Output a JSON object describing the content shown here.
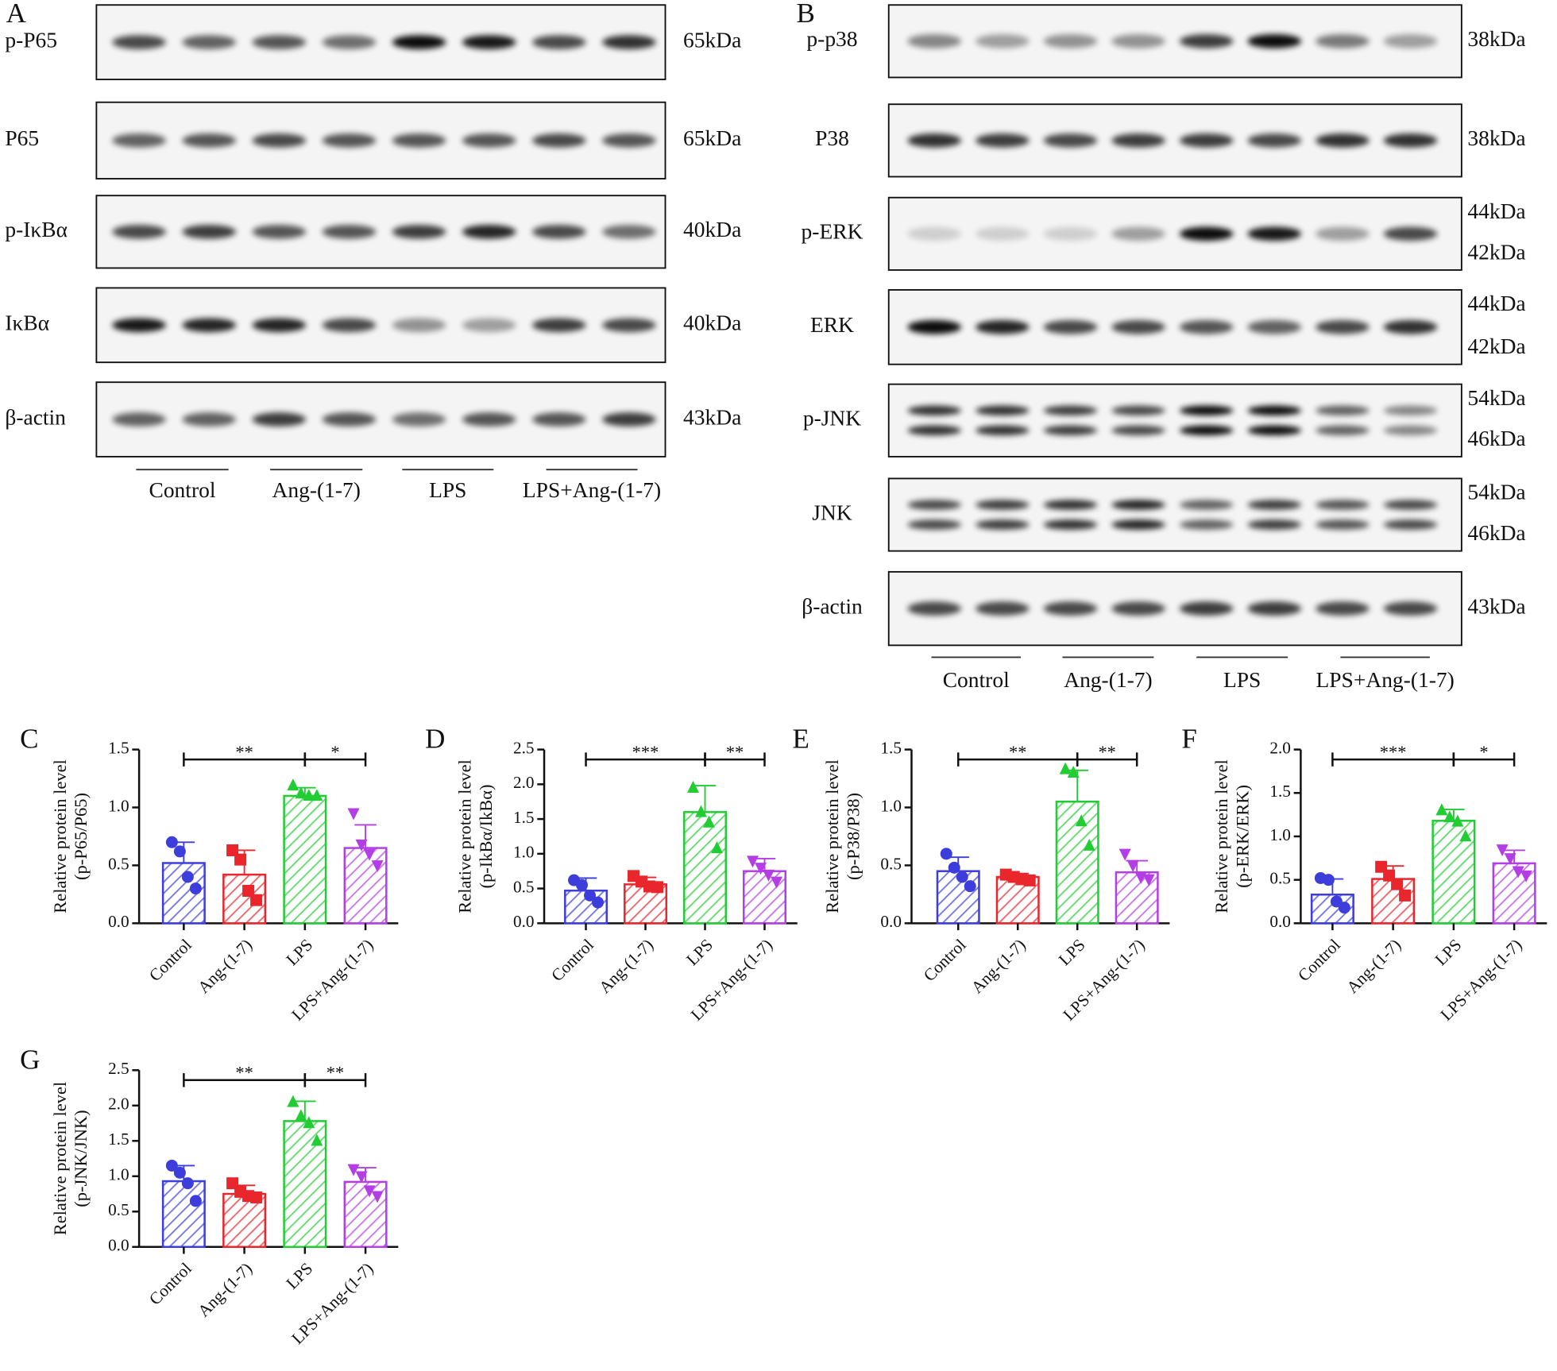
{
  "blots": [
    {
      "letter": "A",
      "rows": [
        {
          "label": "p-P65",
          "sizes": [
            "65kDa"
          ]
        },
        {
          "label": "P65",
          "sizes": [
            "65kDa"
          ]
        },
        {
          "label": "p-IκBα",
          "sizes": [
            "40kDa"
          ]
        },
        {
          "label": "IκBα",
          "sizes": [
            "40kDa"
          ]
        },
        {
          "label": "β-actin",
          "sizes": [
            "43kDa"
          ]
        }
      ],
      "groups": [
        "Control",
        "Ang-(1-7)",
        "LPS",
        "LPS+Ang-(1-7)"
      ]
    },
    {
      "letter": "B",
      "rows": [
        {
          "label": "p-p38",
          "sizes": [
            "38kDa"
          ]
        },
        {
          "label": "P38",
          "sizes": [
            "38kDa"
          ]
        },
        {
          "label": "p-ERK",
          "sizes": [
            "44kDa",
            "42kDa"
          ]
        },
        {
          "label": "ERK",
          "sizes": [
            "44kDa",
            "42kDa"
          ]
        },
        {
          "label": "p-JNK",
          "sizes": [
            "54kDa",
            "46kDa"
          ]
        },
        {
          "label": "JNK",
          "sizes": [
            "54kDa",
            "46kDa"
          ]
        },
        {
          "label": "β-actin",
          "sizes": [
            "43kDa"
          ]
        }
      ],
      "groups": [
        "Control",
        "Ang-(1-7)",
        "LPS",
        "LPS+Ang-(1-7)"
      ]
    }
  ],
  "chart_data": [
    {
      "type": "bar",
      "letter": "C",
      "y_label": [
        "Relative protein level",
        "(p-P65/P65)"
      ],
      "categories": [
        "Control",
        "Ang-(1-7)",
        "LPS",
        "LPS+Ang-(1-7)"
      ],
      "colors": [
        "#3d3ddb",
        "#e8262c",
        "#22cc33",
        "#b43ee6"
      ],
      "markers": [
        "circle",
        "square",
        "triangle",
        "triangle-down"
      ],
      "values": [
        0.52,
        0.42,
        1.1,
        0.65
      ],
      "errors": [
        0.18,
        0.21,
        0.07,
        0.2
      ],
      "points": [
        [
          0.7,
          0.62,
          0.4,
          0.3
        ],
        [
          0.63,
          0.55,
          0.28,
          0.2
        ],
        [
          1.19,
          1.12,
          1.1,
          1.1
        ],
        [
          0.95,
          0.68,
          0.6,
          0.5
        ]
      ],
      "ylim": [
        0,
        1.5
      ],
      "yticks": [
        {
          "value": 0,
          "label": "0.0"
        },
        0.5,
        {
          "value": 1,
          "label": "1.0"
        },
        1.5
      ],
      "significance": [
        {
          "text": "**",
          "between": [
            0,
            2
          ]
        },
        {
          "text": "*",
          "between": [
            2,
            3
          ]
        }
      ]
    },
    {
      "type": "bar",
      "letter": "D",
      "y_label": [
        "Relative protein level",
        "(p-IkBα/IkBα)"
      ],
      "categories": [
        "Control",
        "Ang-(1-7)",
        "LPS",
        "LPS+Ang-(1-7)"
      ],
      "colors": [
        "#3d3ddb",
        "#e8262c",
        "#22cc33",
        "#b43ee6"
      ],
      "markers": [
        "circle",
        "square",
        "triangle",
        "triangle-down"
      ],
      "values": [
        0.47,
        0.56,
        1.6,
        0.75
      ],
      "errors": [
        0.18,
        0.1,
        0.38,
        0.18
      ],
      "points": [
        [
          0.62,
          0.55,
          0.4,
          0.3
        ],
        [
          0.68,
          0.6,
          0.53,
          0.52
        ],
        [
          1.95,
          1.6,
          1.45,
          1.08
        ],
        [
          0.9,
          0.8,
          0.7,
          0.6
        ]
      ],
      "ylim": [
        0,
        2.5
      ],
      "yticks": [
        {
          "value": 0,
          "label": "0.0"
        },
        0.5,
        {
          "value": 1,
          "label": "1.0"
        },
        1.5,
        {
          "value": 2,
          "label": "2.0"
        },
        2.5
      ],
      "significance": [
        {
          "text": "***",
          "between": [
            0,
            2
          ]
        },
        {
          "text": "**",
          "between": [
            2,
            3
          ]
        }
      ]
    },
    {
      "type": "bar",
      "letter": "E",
      "y_label": [
        "Relative protein level",
        "(p-P38/P38)"
      ],
      "categories": [
        "Control",
        "Ang-(1-7)",
        "LPS",
        "LPS+Ang-(1-7)"
      ],
      "colors": [
        "#3d3ddb",
        "#e8262c",
        "#22cc33",
        "#b43ee6"
      ],
      "markers": [
        "circle",
        "square",
        "triangle",
        "triangle-down"
      ],
      "values": [
        0.45,
        0.4,
        1.05,
        0.44
      ],
      "errors": [
        0.12,
        0.03,
        0.27,
        0.1
      ],
      "points": [
        [
          0.6,
          0.48,
          0.4,
          0.32
        ],
        [
          0.42,
          0.4,
          0.38,
          0.37
        ],
        [
          1.33,
          1.3,
          0.88,
          0.67
        ],
        [
          0.6,
          0.5,
          0.4,
          0.38
        ]
      ],
      "ylim": [
        0,
        1.5
      ],
      "yticks": [
        {
          "value": 0,
          "label": "0.0"
        },
        0.5,
        {
          "value": 1,
          "label": "1.0"
        },
        1.5
      ],
      "significance": [
        {
          "text": "**",
          "between": [
            0,
            2
          ]
        },
        {
          "text": "**",
          "between": [
            2,
            3
          ]
        }
      ]
    },
    {
      "type": "bar",
      "letter": "F",
      "y_label": [
        "Relative protein level",
        "(p-ERK/ERK)"
      ],
      "categories": [
        "Control",
        "Ang-(1-7)",
        "LPS",
        "LPS+Ang-(1-7)"
      ],
      "colors": [
        "#3d3ddb",
        "#e8262c",
        "#22cc33",
        "#b43ee6"
      ],
      "markers": [
        "circle",
        "square",
        "triangle",
        "triangle-down"
      ],
      "values": [
        0.33,
        0.51,
        1.18,
        0.69
      ],
      "errors": [
        0.18,
        0.15,
        0.13,
        0.15
      ],
      "points": [
        [
          0.52,
          0.5,
          0.25,
          0.18
        ],
        [
          0.65,
          0.55,
          0.45,
          0.32
        ],
        [
          1.3,
          1.22,
          1.17,
          1.0
        ],
        [
          0.85,
          0.75,
          0.6,
          0.55
        ]
      ],
      "ylim": [
        0,
        2
      ],
      "yticks": [
        {
          "value": 0,
          "label": "0.0"
        },
        0.5,
        {
          "value": 1,
          "label": "1.0"
        },
        1.5,
        {
          "value": 2,
          "label": "2.0"
        }
      ],
      "significance": [
        {
          "text": "***",
          "between": [
            0,
            2
          ]
        },
        {
          "text": "*",
          "between": [
            2,
            3
          ]
        }
      ]
    },
    {
      "type": "bar",
      "letter": "G",
      "y_label": [
        "Relative protein level",
        "(p-JNK/JNK)"
      ],
      "categories": [
        "Control",
        "Ang-(1-7)",
        "LPS",
        "LPS+Ang-(1-7)"
      ],
      "colors": [
        "#3d3ddb",
        "#e8262c",
        "#22cc33",
        "#b43ee6"
      ],
      "markers": [
        "circle",
        "square",
        "triangle",
        "triangle-down"
      ],
      "values": [
        0.93,
        0.75,
        1.78,
        0.92
      ],
      "errors": [
        0.22,
        0.12,
        0.28,
        0.2
      ],
      "points": [
        [
          1.15,
          1.05,
          0.9,
          0.65
        ],
        [
          0.9,
          0.78,
          0.72,
          0.7
        ],
        [
          2.05,
          1.85,
          1.75,
          1.5
        ],
        [
          1.1,
          1.0,
          0.8,
          0.72
        ]
      ],
      "ylim": [
        0,
        2.5
      ],
      "yticks": [
        {
          "value": 0,
          "label": "0.0"
        },
        0.5,
        {
          "value": 1,
          "label": "1.0"
        },
        1.5,
        {
          "value": 2,
          "label": "2.0"
        },
        2.5
      ],
      "significance": [
        {
          "text": "**",
          "between": [
            0,
            2
          ]
        },
        {
          "text": "**",
          "between": [
            2,
            3
          ]
        }
      ]
    }
  ]
}
